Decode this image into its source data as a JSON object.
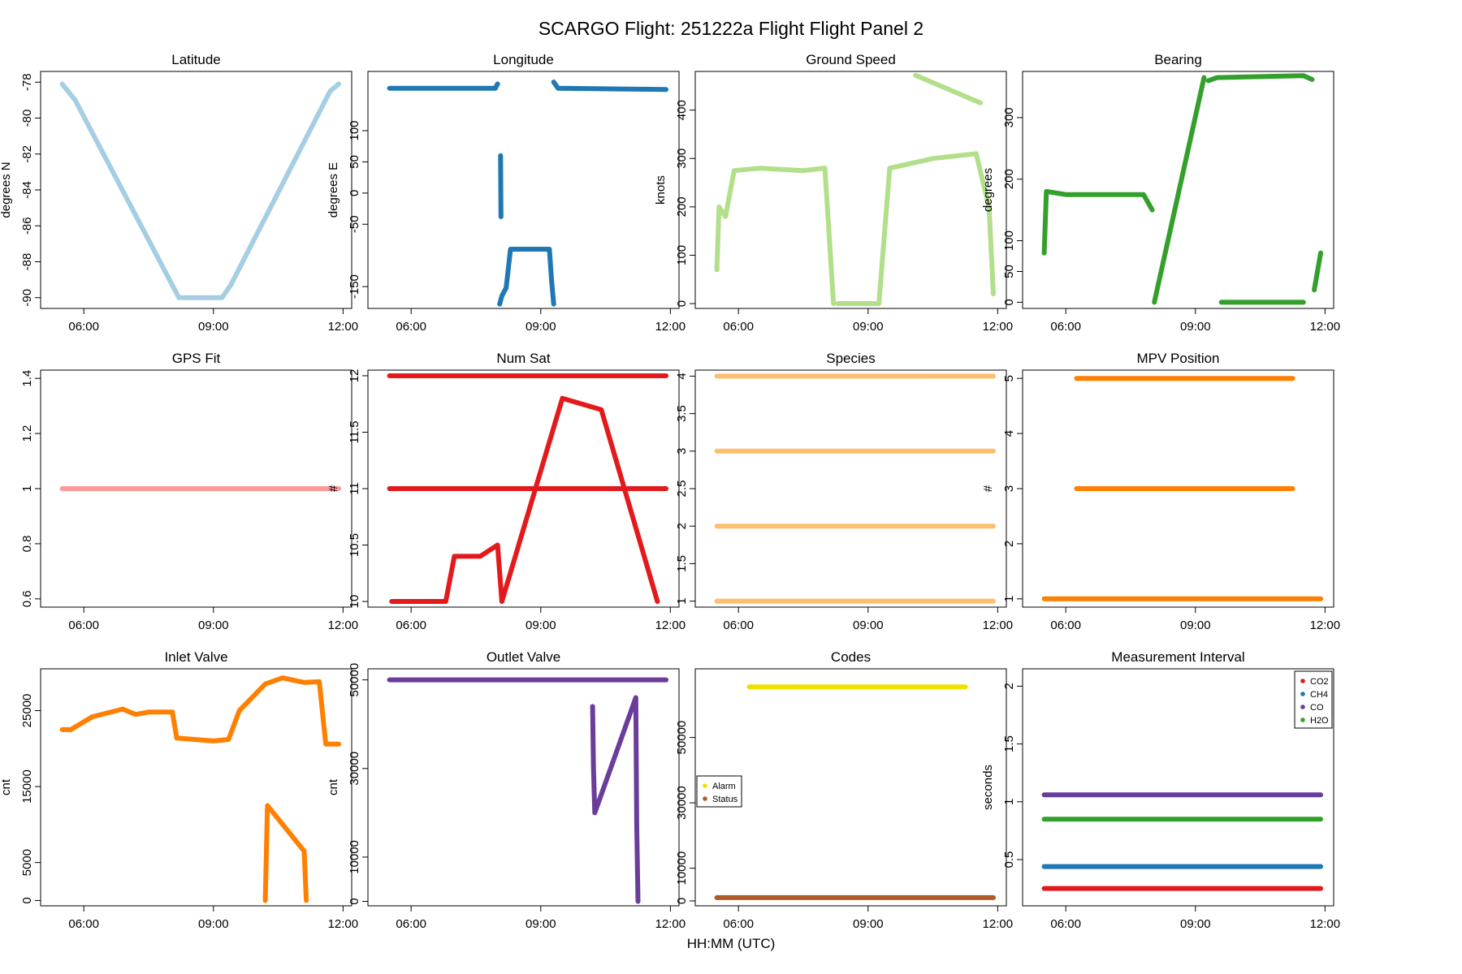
{
  "title": "SCARGO Flight: 251222a  Flight Flight  Panel 2",
  "xlabel": "HH:MM (UTC)",
  "chart_data": [
    {
      "type": "scatter",
      "title": "Latitude",
      "ylabel": "degrees N",
      "color": "#a6cee3",
      "xlim": [
        5.0,
        12.2
      ],
      "ylim": [
        -90.6,
        -77.4
      ],
      "x_ticks": [
        "06:00",
        "09:00",
        "12:00"
      ],
      "y_ticks": [
        -90,
        -88,
        -86,
        -84,
        -82,
        -80,
        -78
      ],
      "series": [
        {
          "x": [
            5.5,
            5.8,
            8.2,
            8.3,
            9.2,
            9.4,
            11.7,
            11.9
          ],
          "y": [
            -78.1,
            -79.0,
            -90,
            -90,
            -90,
            -89.3,
            -78.5,
            -78.1
          ]
        }
      ]
    },
    {
      "type": "scatter",
      "title": "Longitude",
      "ylabel": "degrees E",
      "color": "#1f78b4",
      "xlim": [
        5.0,
        12.2
      ],
      "ylim": [
        -185,
        195
      ],
      "x_ticks": [
        "06:00",
        "09:00",
        "12:00"
      ],
      "y_ticks": [
        -150,
        -50,
        0,
        50,
        100
      ],
      "series": [
        {
          "x": [
            5.5,
            7.8,
            7.95,
            8.0
          ],
          "y": [
            168,
            168,
            168,
            175
          ]
        },
        {
          "x": [
            9.3,
            9.4,
            11.9
          ],
          "y": [
            178,
            168,
            166
          ]
        },
        {
          "x": [
            8.05,
            8.1,
            8.2,
            8.3,
            9.2,
            9.25,
            9.3
          ],
          "y": [
            -178,
            -165,
            -152,
            -90,
            -90,
            -140,
            -178
          ]
        },
        {
          "x": [
            8.07,
            8.08
          ],
          "y": [
            60,
            -38
          ]
        }
      ]
    },
    {
      "type": "scatter",
      "title": "Ground Speed",
      "ylabel": "knots",
      "color": "#b2df8a",
      "xlim": [
        5.0,
        12.2
      ],
      "ylim": [
        -10,
        480
      ],
      "x_ticks": [
        "06:00",
        "09:00",
        "12:00"
      ],
      "y_ticks": [
        0,
        100,
        200,
        300,
        400
      ],
      "series": [
        {
          "x": [
            5.5,
            5.55,
            5.7,
            5.9,
            6.5,
            7.5,
            8.0,
            8.2
          ],
          "y": [
            70,
            200,
            180,
            275,
            280,
            275,
            280,
            0
          ]
        },
        {
          "x": [
            8.3,
            9.2
          ],
          "y": [
            0,
            0
          ]
        },
        {
          "x": [
            9.25,
            9.5,
            10.5,
            11.5,
            11.8,
            11.9
          ],
          "y": [
            0,
            280,
            300,
            310,
            200,
            20
          ]
        },
        {
          "x": [
            10.1,
            11.6
          ],
          "y": [
            472,
            415
          ]
        }
      ]
    },
    {
      "type": "scatter",
      "title": "Bearing",
      "ylabel": "degrees",
      "color": "#33a02c",
      "xlim": [
        5.0,
        12.2
      ],
      "ylim": [
        -10,
        375
      ],
      "x_ticks": [
        "06:00",
        "09:00",
        "12:00"
      ],
      "y_ticks": [
        0,
        50,
        100,
        200,
        300
      ],
      "series": [
        {
          "x": [
            5.5,
            5.55,
            6.0,
            7.8,
            8.0
          ],
          "y": [
            80,
            180,
            175,
            175,
            150
          ]
        },
        {
          "x": [
            8.05,
            9.2
          ],
          "y": [
            0,
            365
          ]
        },
        {
          "x": [
            9.3,
            9.5,
            11.5,
            11.7
          ],
          "y": [
            360,
            365,
            368,
            362
          ]
        },
        {
          "x": [
            9.6,
            11.5
          ],
          "y": [
            0,
            0
          ]
        },
        {
          "x": [
            11.75,
            11.9
          ],
          "y": [
            20,
            80
          ]
        }
      ]
    },
    {
      "type": "scatter",
      "title": "GPS Fit",
      "ylabel": "",
      "color": "#fb9a99",
      "xlim": [
        5.0,
        12.2
      ],
      "ylim": [
        0.57,
        1.43
      ],
      "x_ticks": [
        "06:00",
        "09:00",
        "12:00"
      ],
      "y_ticks": [
        0.6,
        0.8,
        1.0,
        1.2,
        1.4
      ],
      "series": [
        {
          "x": [
            5.5,
            11.9
          ],
          "y": [
            1.0,
            1.0
          ]
        }
      ]
    },
    {
      "type": "scatter",
      "title": "Num Sat",
      "ylabel": "#",
      "color": "#e31a1c",
      "xlim": [
        5.0,
        12.2
      ],
      "ylim": [
        9.95,
        12.05
      ],
      "x_ticks": [
        "06:00",
        "09:00",
        "12:00"
      ],
      "y_ticks": [
        10.0,
        10.5,
        11.0,
        11.5,
        12.0
      ],
      "series": [
        {
          "x": [
            5.5,
            11.9
          ],
          "y": [
            12,
            12
          ]
        },
        {
          "x": [
            5.5,
            11.9
          ],
          "y": [
            11,
            11
          ]
        },
        {
          "x": [
            5.55,
            6.3,
            6.8,
            7.0,
            7.6,
            8.0,
            8.1,
            9.5,
            10.4,
            11.7
          ],
          "y": [
            10.0,
            10.0,
            10.0,
            10.4,
            10.4,
            10.5,
            10.0,
            11.8,
            11.7,
            10.0
          ]
        }
      ]
    },
    {
      "type": "scatter",
      "title": "Species",
      "ylabel": "",
      "color": "#fdbf6f",
      "xlim": [
        5.0,
        12.2
      ],
      "ylim": [
        0.92,
        4.08
      ],
      "x_ticks": [
        "06:00",
        "09:00",
        "12:00"
      ],
      "y_ticks": [
        1.0,
        1.5,
        2.0,
        2.5,
        3.0,
        3.5,
        4.0
      ],
      "series": [
        {
          "x": [
            5.5,
            11.9
          ],
          "y": [
            1,
            1
          ]
        },
        {
          "x": [
            5.5,
            11.9
          ],
          "y": [
            2,
            2
          ]
        },
        {
          "x": [
            5.5,
            11.9
          ],
          "y": [
            3,
            3
          ]
        },
        {
          "x": [
            5.5,
            11.9
          ],
          "y": [
            4,
            4
          ]
        }
      ]
    },
    {
      "type": "scatter",
      "title": "MPV Position",
      "ylabel": "#",
      "color": "#ff7f00",
      "xlim": [
        5.0,
        12.2
      ],
      "ylim": [
        0.85,
        5.15
      ],
      "x_ticks": [
        "06:00",
        "09:00",
        "12:00"
      ],
      "y_ticks": [
        1,
        2,
        3,
        4,
        5
      ],
      "series": [
        {
          "x": [
            5.5,
            11.9
          ],
          "y": [
            1,
            1
          ]
        },
        {
          "x": [
            6.25,
            7.3,
            8.3,
            9.1,
            10.25,
            11.25
          ],
          "y": [
            3,
            3,
            3,
            3,
            3,
            3
          ]
        },
        {
          "x": [
            6.25,
            7.3,
            8.3,
            9.1,
            10.25,
            11.25
          ],
          "y": [
            5,
            5,
            5,
            5,
            5,
            5
          ]
        }
      ]
    },
    {
      "type": "scatter",
      "title": "Inlet Valve",
      "ylabel": "cnt",
      "color": "#ff7f00",
      "xlim": [
        5.0,
        12.2
      ],
      "ylim": [
        -700,
        30500
      ],
      "x_ticks": [
        "06:00",
        "09:00",
        "12:00"
      ],
      "y_ticks": [
        0,
        5000,
        15000,
        25000
      ],
      "series": [
        {
          "x": [
            5.5,
            5.7,
            6.2,
            6.9,
            7.2,
            7.5,
            8.05,
            8.15,
            9.0,
            9.35,
            9.6,
            10.2,
            10.6,
            11.1,
            11.45,
            11.6,
            11.9
          ],
          "y": [
            22500,
            22500,
            24200,
            25200,
            24500,
            24800,
            24800,
            21400,
            21000,
            21200,
            25000,
            28500,
            29300,
            28700,
            28800,
            20600,
            20600
          ]
        },
        {
          "x": [
            10.2,
            10.25,
            11.1,
            11.15
          ],
          "y": [
            0,
            12500,
            6500,
            0
          ]
        }
      ]
    },
    {
      "type": "scatter",
      "title": "Outlet Valve",
      "ylabel": "cnt",
      "color": "#6a3d9a",
      "xlim": [
        5.0,
        12.2
      ],
      "ylim": [
        -1000,
        52500
      ],
      "x_ticks": [
        "06:00",
        "09:00",
        "12:00"
      ],
      "y_ticks": [
        0,
        10000,
        30000,
        50000
      ],
      "series": [
        {
          "x": [
            5.5,
            11.9
          ],
          "y": [
            50000,
            50000
          ]
        },
        {
          "x": [
            10.2,
            10.22,
            10.25,
            11.2,
            11.22,
            11.25
          ],
          "y": [
            44000,
            30000,
            20000,
            46000,
            17500,
            0
          ]
        }
      ]
    },
    {
      "type": "scatter",
      "title": "Codes",
      "ylabel": "",
      "xlim": [
        5.0,
        12.2
      ],
      "ylim": [
        -1500,
        71000
      ],
      "x_ticks": [
        "06:00",
        "09:00",
        "12:00"
      ],
      "y_ticks": [
        0,
        10000,
        30000,
        50000
      ],
      "legend_position": "left",
      "series": [
        {
          "name": "Alarm",
          "color": "#f0e000",
          "x": [
            6.25,
            7.25,
            7.3,
            10.2,
            10.25,
            11.2,
            11.25
          ],
          "y": [
            65500,
            65500,
            65500,
            65500,
            65500,
            65500,
            65500
          ]
        },
        {
          "name": "Status",
          "color": "#b15928",
          "x": [
            5.5,
            11.9
          ],
          "y": [
            1000,
            1000
          ]
        }
      ]
    },
    {
      "type": "scatter",
      "title": "Measurement Interval",
      "ylabel": "seconds",
      "xlim": [
        5.0,
        12.2
      ],
      "ylim": [
        0.1,
        2.15
      ],
      "x_ticks": [
        "06:00",
        "09:00",
        "12:00"
      ],
      "y_ticks": [
        0.5,
        1.0,
        1.5,
        2.0
      ],
      "legend_position": "top-right",
      "series": [
        {
          "name": "CO2",
          "color": "#e31a1c",
          "x": [
            5.5,
            11.9
          ],
          "y": [
            0.25,
            0.25
          ]
        },
        {
          "name": "CH4",
          "color": "#1f78b4",
          "x": [
            5.5,
            11.9
          ],
          "y": [
            0.44,
            0.44
          ]
        },
        {
          "name": "CO",
          "color": "#6a3d9a",
          "x": [
            5.5,
            11.9
          ],
          "y": [
            1.06,
            1.06
          ]
        },
        {
          "name": "H2O",
          "color": "#33a02c",
          "x": [
            5.5,
            11.9
          ],
          "y": [
            0.85,
            0.85
          ]
        }
      ]
    }
  ]
}
